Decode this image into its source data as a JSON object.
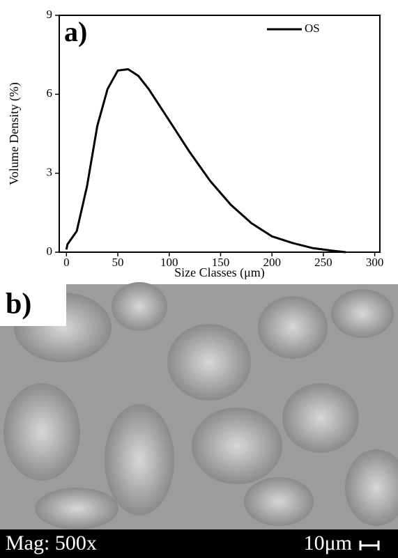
{
  "chart_data": {
    "type": "line",
    "annotation": "a)",
    "x_label": "Size Classes (μm)",
    "y_label": "Volume Density (%)",
    "x": [
      0,
      1,
      10,
      20,
      30,
      40,
      50,
      60,
      70,
      80,
      100,
      120,
      140,
      160,
      180,
      200,
      220,
      240,
      260,
      272
    ],
    "series": [
      {
        "name": "OS",
        "color": "#000000",
        "values": [
          0.1,
          0.3,
          0.8,
          2.5,
          4.8,
          6.2,
          6.9,
          6.95,
          6.7,
          6.2,
          5.0,
          3.8,
          2.7,
          1.8,
          1.1,
          0.6,
          0.35,
          0.15,
          0.05,
          0
        ]
      }
    ],
    "xlim": [
      -7,
      305
    ],
    "xticks": [
      0,
      50,
      100,
      150,
      200,
      250,
      300
    ],
    "ylim": [
      0,
      9
    ],
    "yticks": [
      0,
      3,
      6,
      9
    ],
    "grid": false,
    "legend": "top-right"
  },
  "panel_b": {
    "label": "b)",
    "magnification": "Mag: 500x",
    "scale": "10μm"
  }
}
